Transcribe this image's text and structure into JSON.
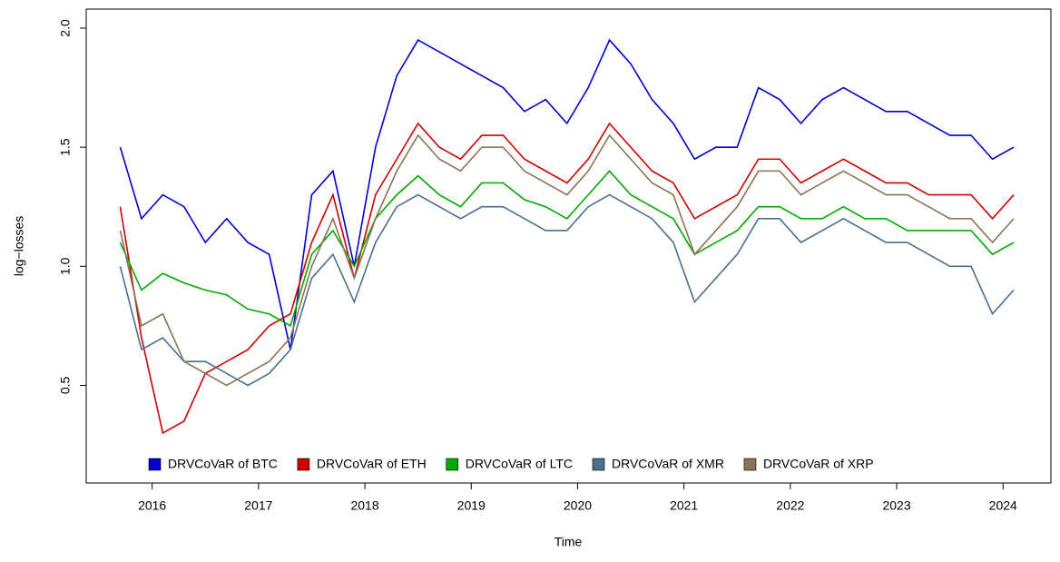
{
  "chart_data": {
    "type": "line",
    "xlabel": "Time",
    "ylabel": "log−losses",
    "x": [
      2015.7,
      2015.9,
      2016.1,
      2016.3,
      2016.5,
      2016.7,
      2016.9,
      2017.1,
      2017.3,
      2017.5,
      2017.7,
      2017.9,
      2018.1,
      2018.3,
      2018.5,
      2018.7,
      2018.9,
      2019.1,
      2019.3,
      2019.5,
      2019.7,
      2019.9,
      2020.1,
      2020.3,
      2020.5,
      2020.7,
      2020.9,
      2021.1,
      2021.3,
      2021.5,
      2021.7,
      2021.9,
      2022.1,
      2022.3,
      2022.5,
      2022.7,
      2022.9,
      2023.1,
      2023.3,
      2023.5,
      2023.7,
      2023.9,
      2024.1
    ],
    "series": [
      {
        "name": "DRVCoVaR of BTC",
        "color": "#0000cd",
        "values": [
          1.5,
          1.2,
          1.3,
          1.25,
          1.1,
          1.2,
          1.1,
          1.05,
          0.65,
          1.3,
          1.4,
          1.0,
          1.5,
          1.8,
          1.95,
          1.9,
          1.85,
          1.8,
          1.75,
          1.65,
          1.7,
          1.6,
          1.75,
          1.95,
          1.85,
          1.7,
          1.6,
          1.45,
          1.5,
          1.5,
          1.75,
          1.7,
          1.6,
          1.7,
          1.75,
          1.7,
          1.65,
          1.65,
          1.6,
          1.55,
          1.55,
          1.45,
          1.5
        ]
      },
      {
        "name": "DRVCoVaR of ETH",
        "color": "#cd0000",
        "values": [
          1.25,
          0.7,
          0.3,
          0.35,
          0.55,
          0.6,
          0.65,
          0.75,
          0.8,
          1.1,
          1.3,
          0.95,
          1.3,
          1.45,
          1.6,
          1.5,
          1.45,
          1.55,
          1.55,
          1.45,
          1.4,
          1.35,
          1.45,
          1.6,
          1.5,
          1.4,
          1.35,
          1.2,
          1.25,
          1.3,
          1.45,
          1.45,
          1.35,
          1.4,
          1.45,
          1.4,
          1.35,
          1.35,
          1.3,
          1.3,
          1.3,
          1.2,
          1.3
        ]
      },
      {
        "name": "DRVCoVaR of LTC",
        "color": "#00aa00",
        "values": [
          1.1,
          0.9,
          0.97,
          0.93,
          0.9,
          0.88,
          0.82,
          0.8,
          0.75,
          1.05,
          1.15,
          1.0,
          1.2,
          1.3,
          1.38,
          1.3,
          1.25,
          1.35,
          1.35,
          1.28,
          1.25,
          1.2,
          1.3,
          1.4,
          1.3,
          1.25,
          1.2,
          1.05,
          1.1,
          1.15,
          1.25,
          1.25,
          1.2,
          1.2,
          1.25,
          1.2,
          1.2,
          1.15,
          1.15,
          1.15,
          1.15,
          1.05,
          1.1
        ]
      },
      {
        "name": "DRVCoVaR of XMR",
        "color": "#4a708b",
        "values": [
          1.0,
          0.65,
          0.7,
          0.6,
          0.6,
          0.55,
          0.5,
          0.55,
          0.65,
          0.95,
          1.05,
          0.85,
          1.1,
          1.25,
          1.3,
          1.25,
          1.2,
          1.25,
          1.25,
          1.2,
          1.15,
          1.15,
          1.25,
          1.3,
          1.25,
          1.2,
          1.1,
          0.85,
          0.95,
          1.05,
          1.2,
          1.2,
          1.1,
          1.15,
          1.2,
          1.15,
          1.1,
          1.1,
          1.05,
          1.0,
          1.0,
          0.8,
          0.9
        ]
      },
      {
        "name": "DRVCoVaR of XRP",
        "color": "#8b7355",
        "values": [
          1.15,
          0.75,
          0.8,
          0.6,
          0.55,
          0.5,
          0.55,
          0.6,
          0.7,
          1.0,
          1.2,
          0.95,
          1.2,
          1.4,
          1.55,
          1.45,
          1.4,
          1.5,
          1.5,
          1.4,
          1.35,
          1.3,
          1.4,
          1.55,
          1.45,
          1.35,
          1.3,
          1.05,
          1.15,
          1.25,
          1.4,
          1.4,
          1.3,
          1.35,
          1.4,
          1.35,
          1.3,
          1.3,
          1.25,
          1.2,
          1.2,
          1.1,
          1.2
        ]
      }
    ],
    "xlim": [
      2015.38,
      2024.45
    ],
    "xticks": [
      2016,
      2017,
      2018,
      2019,
      2020,
      2021,
      2022,
      2023,
      2024
    ],
    "ylim": [
      0.09,
      2.08
    ],
    "yticks": [
      0.5,
      {
        "value": 1,
        "label": "1.0"
      },
      1.5,
      {
        "value": 2,
        "label": "2.0"
      }
    ],
    "legend": "bottom"
  }
}
